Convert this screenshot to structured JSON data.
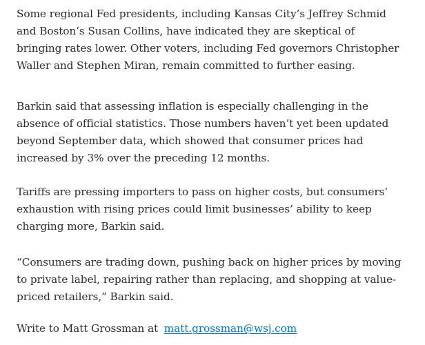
{
  "article": {
    "paragraphs": [
      {
        "lines": [
          "Some regional Fed presidents, including Kansas City’s Jeffrey Schmid",
          "and Boston’s Susan Collins, have indicated they are skeptical of",
          "bringing rates lower. Other voters, including Fed governors Christopher",
          "Waller and Stephen Miran, remain committed to further easing."
        ]
      },
      {
        "lines": [
          "Barkin said that assessing inflation is especially challenging in the",
          "absence of official statistics. Those numbers haven’t yet been updated",
          "beyond September data, which showed that consumer prices had",
          "increased by 3% over the preceding 12 months."
        ]
      },
      {
        "lines": [
          "Tariffs are pressing importers to pass on higher costs, but consumers’",
          "exhaustion with rising prices could limit businesses’ ability to keep",
          "charging more, Barkin said."
        ]
      },
      {
        "lines": [
          "“Consumers are trading down, pushing back on higher prices by moving",
          "to private label, repairing rather than replacing, and shopping at value-",
          "priced retailers,” Barkin said."
        ]
      }
    ],
    "contact": {
      "prefix": "Write to Matt Grossman at",
      "email": "matt.grossman@wsj.com"
    }
  },
  "colors": {
    "text": "#2b2b2b",
    "link": "#0274b6",
    "background": "#ffffff"
  }
}
